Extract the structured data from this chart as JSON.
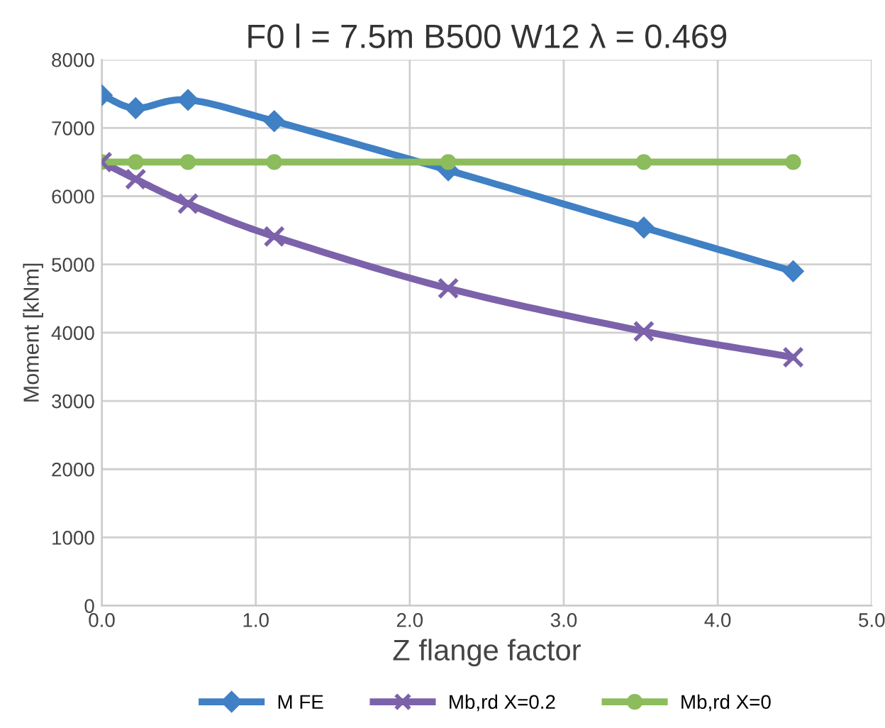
{
  "chart_data": {
    "type": "line",
    "title": "F0 l = 7.5m B500 W12 λ = 0.469",
    "xlabel": "Z flange factor",
    "ylabel": "Moment [kNm]",
    "xlim": [
      0,
      5
    ],
    "xticks": [
      {
        "value": 0,
        "label": "0.0"
      },
      {
        "value": 1,
        "label": "1.0"
      },
      {
        "value": 2,
        "label": "2.0"
      },
      {
        "value": 3,
        "label": "3.0"
      },
      {
        "value": 4,
        "label": "4.0"
      },
      {
        "value": 5,
        "label": "5.0"
      }
    ],
    "ylim": [
      0,
      8000
    ],
    "yticks": [
      0,
      1000,
      2000,
      3000,
      4000,
      5000,
      6000,
      7000,
      8000
    ],
    "grid": true,
    "legend": "bottom",
    "x": [
      0,
      0.22,
      0.56,
      1.12,
      2.25,
      3.52,
      4.49
    ],
    "series": [
      {
        "name": "M FE",
        "color": "#4080c4",
        "marker": "diamond",
        "values": [
          7480,
          7290,
          7410,
          7100,
          6380,
          5540,
          4900
        ]
      },
      {
        "name": "Mb,rd X=0.2",
        "color": "#7c62aa",
        "marker": "cross",
        "values": [
          6500,
          6250,
          5890,
          5410,
          4650,
          4020,
          3640
        ]
      },
      {
        "name": "Mb,rd X=0",
        "color": "#8cbc5c",
        "marker": "circle",
        "values": [
          6500,
          6500,
          6500,
          6500,
          6500,
          6500,
          6500
        ]
      }
    ]
  }
}
